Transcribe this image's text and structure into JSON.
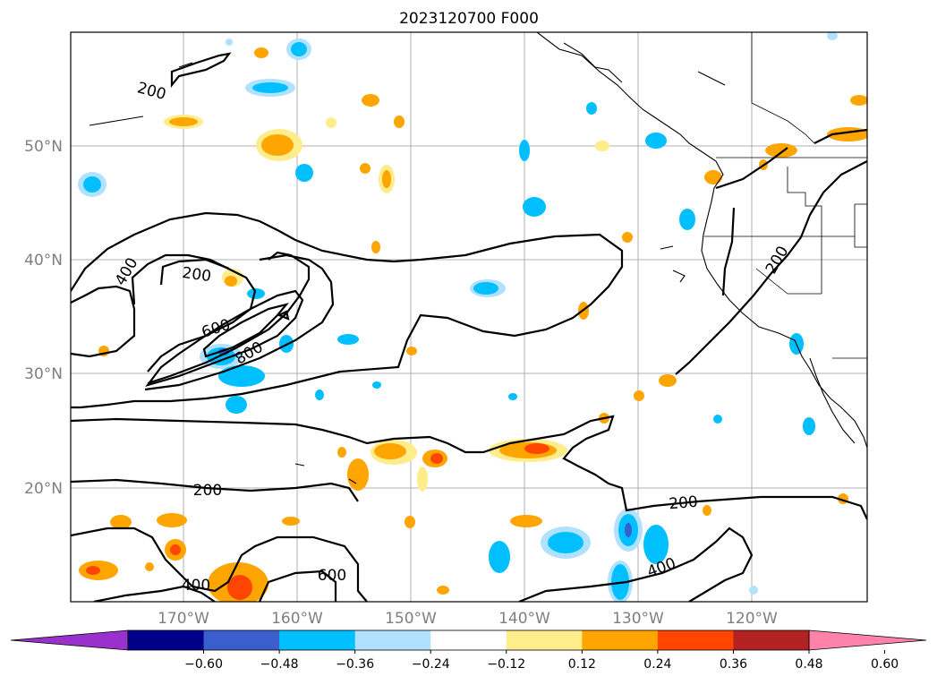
{
  "title": "2023120700 F000",
  "map": {
    "lat_labels": [
      "50°N",
      "40°N",
      "30°N",
      "20°N"
    ],
    "lon_labels": [
      "170°W",
      "160°W",
      "150°W",
      "140°W",
      "130°W",
      "120°W"
    ],
    "contour_labels": [
      "200",
      "400",
      "200",
      "600",
      "800",
      "200",
      "200",
      "400",
      "600",
      "200",
      "400"
    ]
  },
  "colorbar": {
    "tick_labels": [
      "−0.60",
      "−0.48",
      "−0.36",
      "−0.24",
      "−0.12",
      "0.12",
      "0.24",
      "0.36",
      "0.48",
      "0.60"
    ],
    "colors": [
      "#9932cc",
      "#00008b",
      "#3a5fcd",
      "#00bfff",
      "#b0e2ff",
      "#ffffff",
      "#ffec8b",
      "#ffa500",
      "#ff4500",
      "#b22222",
      "#ff82ab"
    ]
  }
}
